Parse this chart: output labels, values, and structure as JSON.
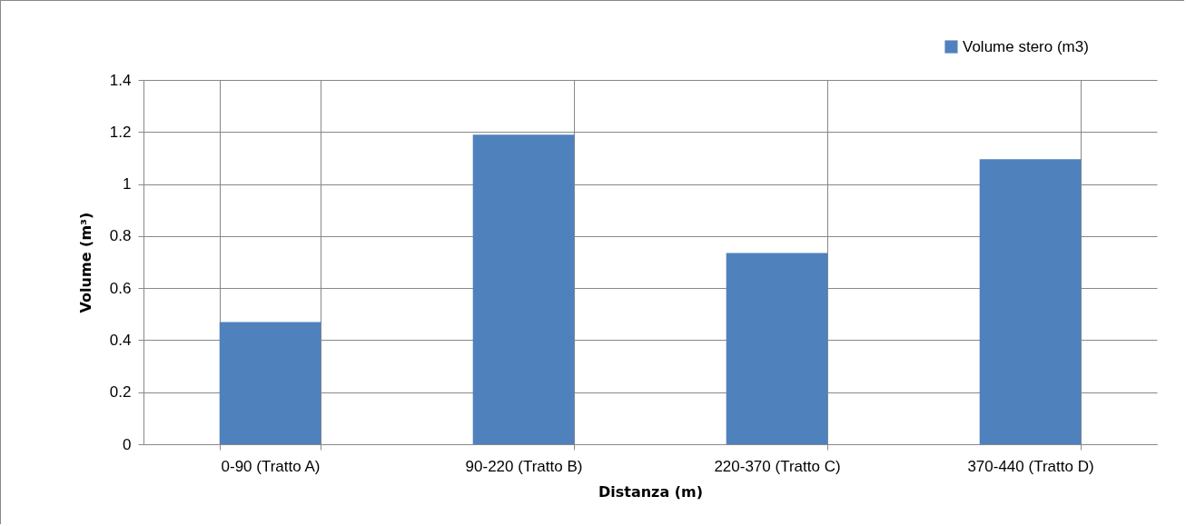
{
  "chart_data": {
    "type": "bar",
    "xlabel": "Distanza (m)",
    "ylabel": "Volume (m³)",
    "categories": [
      "0-90 (Tratto A)",
      "90-220 (Tratto B)",
      "220-370 (Tratto C)",
      "370-440 (Tratto D)"
    ],
    "series": [
      {
        "name": "Volume stero (m3)",
        "color": "#4f81bd",
        "values": [
          0.47,
          1.19,
          0.735,
          1.095
        ]
      }
    ],
    "ylim": [
      0,
      1.4
    ],
    "yticks": [
      0,
      0.2,
      0.4,
      0.6,
      0.8,
      1,
      1.2,
      1.4
    ],
    "grid": true,
    "legend": "top right"
  }
}
